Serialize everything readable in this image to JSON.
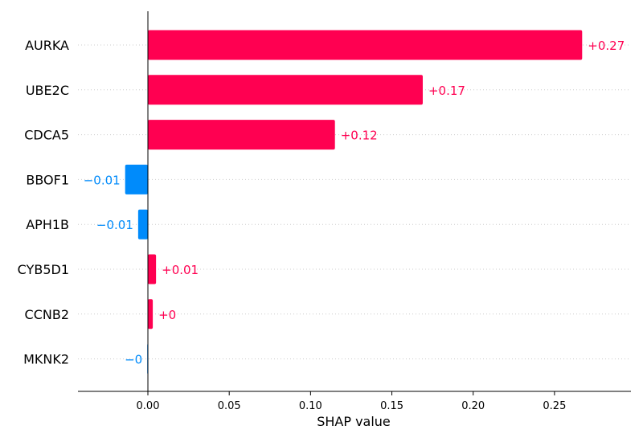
{
  "chart_data": {
    "type": "bar",
    "orientation": "horizontal",
    "title": "",
    "xlabel": "SHAP value",
    "ylabel": "",
    "xlim": [
      -0.043,
      0.297
    ],
    "grid": false,
    "xticks": [
      {
        "value": 0.0,
        "label": "0.00"
      },
      {
        "value": 0.05,
        "label": "0.05"
      },
      {
        "value": 0.1,
        "label": "0.10"
      },
      {
        "value": 0.15,
        "label": "0.15"
      },
      {
        "value": 0.2,
        "label": "0.20"
      },
      {
        "value": 0.25,
        "label": "0.25"
      }
    ],
    "categories": [
      "AURKA",
      "UBE2C",
      "CDCA5",
      "BBOF1",
      "APH1B",
      "CYB5D1",
      "CCNB2",
      "MKNK2"
    ],
    "values": [
      0.267,
      0.169,
      0.115,
      -0.014,
      -0.006,
      0.005,
      0.003,
      -0.0004
    ],
    "data_labels": [
      "+0.27",
      "+0.17",
      "+0.12",
      "−0.01",
      "−0.01",
      "+0.01",
      "+0",
      "−0"
    ],
    "colors": {
      "positive": "#ff0051",
      "negative": "#008bfb",
      "axis": "#000000",
      "row_line": "#cccccc"
    }
  }
}
